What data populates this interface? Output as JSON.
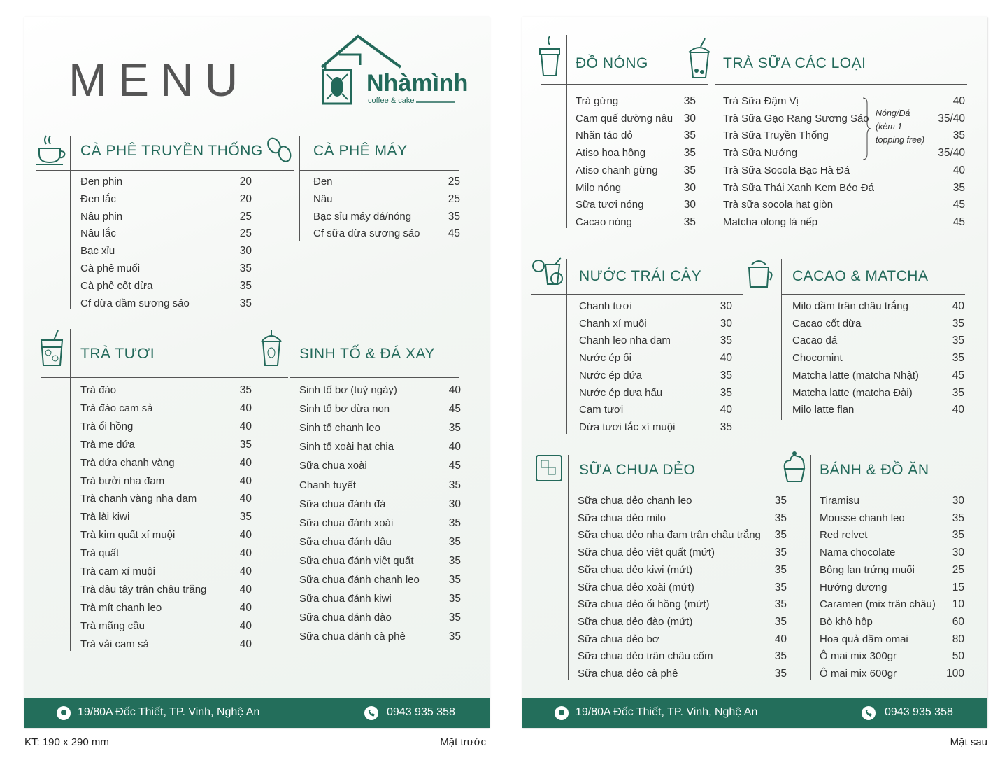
{
  "front": {
    "title": "MENU",
    "logo": {
      "name": "Nhàmình",
      "tagline": "coffee & cake"
    },
    "sections": [
      {
        "title": "CÀ PHÊ TRUYỀN THỐNG",
        "items": [
          [
            "Đen phin",
            20
          ],
          [
            "Đen lắc",
            20
          ],
          [
            "Nâu phin",
            25
          ],
          [
            "Nâu lắc",
            25
          ],
          [
            "Bạc xỉu",
            30
          ],
          [
            "Cà phê muối",
            35
          ],
          [
            "Cà phê cốt dừa",
            35
          ],
          [
            "Cf dừa dầm sương sáo",
            35
          ]
        ]
      },
      {
        "title": "CÀ PHÊ MÁY",
        "items": [
          [
            "Đen",
            25
          ],
          [
            "Nâu",
            25
          ],
          [
            "Bạc sỉu máy đá/nóng",
            35
          ],
          [
            "Cf sữa dừa sương sáo",
            45
          ]
        ]
      },
      {
        "title": "TRÀ TƯƠI",
        "items": [
          [
            "Trà đào",
            35
          ],
          [
            "Trà đào cam sả",
            40
          ],
          [
            "Trà ổi hồng",
            40
          ],
          [
            "Trà me dứa",
            35
          ],
          [
            "Trà dứa chanh vàng",
            40
          ],
          [
            "Trà bưởi nha đam",
            40
          ],
          [
            "Trà chanh vàng nha đam",
            40
          ],
          [
            "Trà lài kiwi",
            35
          ],
          [
            "Trà kim quất xí muội",
            40
          ],
          [
            "Trà quất",
            40
          ],
          [
            "Trà cam xí muội",
            40
          ],
          [
            "Trà dâu tây trân châu trắng",
            40
          ],
          [
            "Trà mít chanh leo",
            40
          ],
          [
            "Trà mãng cầu",
            40
          ],
          [
            "Trà vải cam sả",
            40
          ]
        ]
      },
      {
        "title": "SINH TỐ & ĐÁ XAY",
        "items": [
          [
            "Sinh tố bơ (tuỳ ngày)",
            40
          ],
          [
            "Sinh tố bơ dừa non",
            45
          ],
          [
            "Sinh tố chanh leo",
            35
          ],
          [
            "Sinh tố xoài hạt chia",
            40
          ],
          [
            "Sữa chua xoài",
            45
          ],
          [
            "Chanh tuyết",
            35
          ],
          [
            "Sữa chua đánh đá",
            30
          ],
          [
            "Sữa chua đánh xoài",
            35
          ],
          [
            "Sữa chua đánh dâu",
            35
          ],
          [
            "Sữa chua đánh việt quất",
            35
          ],
          [
            "Sữa chua đánh chanh leo",
            35
          ],
          [
            "Sữa chua đánh kiwi",
            35
          ],
          [
            "Sữa chua đánh đào",
            35
          ],
          [
            "Sữa chua đánh cà phê",
            35
          ]
        ]
      }
    ],
    "footer": {
      "address": "19/80A Đốc Thiết, TP. Vinh, Nghệ An",
      "phone": "0943 935 358"
    },
    "caption": "Mặt trước"
  },
  "back": {
    "sections": [
      {
        "title": "ĐỒ NÓNG",
        "items": [
          [
            "Trà gừng",
            35
          ],
          [
            "Cam quế đường nâu",
            30
          ],
          [
            "Nhãn táo đỏ",
            35
          ],
          [
            "Atiso hoa hồng",
            35
          ],
          [
            "Atiso chanh gừng",
            35
          ],
          [
            "Milo nóng",
            30
          ],
          [
            "Sữa tươi nóng",
            30
          ],
          [
            "Cacao nóng",
            35
          ]
        ]
      },
      {
        "title": "TRÀ SỮA CÁC LOẠI",
        "items": [
          [
            "Trà Sữa Đậm Vị",
            40
          ],
          [
            "Trà Sữa Gạo Rang Sương Sáo",
            "35/40"
          ],
          [
            "Trà Sữa Truyền Thống",
            35
          ],
          [
            "Trà Sữa Nướng",
            "35/40"
          ],
          [
            "Trà Sữa Socola Bạc Hà Đá",
            40
          ],
          [
            "Trà Sữa Thái Xanh Kem Béo Đá",
            35
          ],
          [
            "Trà sữa socola hạt giòn",
            45
          ],
          [
            "Matcha olong lá nếp",
            45
          ]
        ],
        "note": [
          "Nóng/Đá",
          "(kèm 1",
          "topping free)"
        ]
      },
      {
        "title": "NƯỚC TRÁI CÂY",
        "items": [
          [
            "Chanh tươi",
            30
          ],
          [
            "Chanh xí muội",
            30
          ],
          [
            "Chanh leo nha đam",
            35
          ],
          [
            "Nước ép ổi",
            40
          ],
          [
            "Nước ép dứa",
            35
          ],
          [
            "Nước ép dưa hấu",
            35
          ],
          [
            "Cam tươi",
            40
          ],
          [
            "Dừa tươi tắc xí muội",
            35
          ]
        ]
      },
      {
        "title": "CACAO & MATCHA",
        "items": [
          [
            "Milo dầm trân châu trắng",
            40
          ],
          [
            "Cacao cốt dừa",
            35
          ],
          [
            "Cacao đá",
            35
          ],
          [
            "Chocomint",
            35
          ],
          [
            "Matcha latte (matcha Nhật)",
            45
          ],
          [
            "Matcha latte (matcha Đài)",
            35
          ],
          [
            "Milo latte flan",
            40
          ]
        ]
      },
      {
        "title": "SỮA CHUA DẺO",
        "items": [
          [
            "Sữa chua dẻo chanh leo",
            35
          ],
          [
            "Sữa chua dẻo milo",
            35
          ],
          [
            "Sữa chua dẻo nha đam trân châu trắng",
            35
          ],
          [
            "Sữa chua dẻo việt quất (mứt)",
            35
          ],
          [
            "Sữa chua dẻo kiwi (mứt)",
            35
          ],
          [
            "Sữa chua dẻo xoài (mứt)",
            35
          ],
          [
            "Sữa chua dẻo ổi hồng (mứt)",
            35
          ],
          [
            "Sữa chua dẻo đào (mứt)",
            35
          ],
          [
            "Sữa chua dẻo bơ",
            40
          ],
          [
            "Sữa chua dẻo trân châu cốm",
            35
          ],
          [
            "Sữa chua dẻo cà phê",
            35
          ]
        ]
      },
      {
        "title": "BÁNH & ĐỒ ĂN",
        "items": [
          [
            "Tiramisu",
            30
          ],
          [
            "Mousse chanh leo",
            35
          ],
          [
            "Red relvet",
            35
          ],
          [
            "Nama chocolate",
            30
          ],
          [
            "Bông lan trứng muối",
            25
          ],
          [
            "Hướng dương",
            15
          ],
          [
            "Caramen  (mix trân châu)",
            10
          ],
          [
            "Bò khô hộp",
            60
          ],
          [
            "Hoa quả dầm omai",
            80
          ],
          [
            "Ô mai mix 300gr",
            50
          ],
          [
            "Ô mai mix 600gr",
            100
          ]
        ]
      }
    ],
    "footer": {
      "address": "19/80A Đốc Thiết, TP. Vinh, Nghệ An",
      "phone": "0943 935 358"
    },
    "caption": "Mặt sau"
  },
  "size_note": "KT: 190 x 290 mm"
}
